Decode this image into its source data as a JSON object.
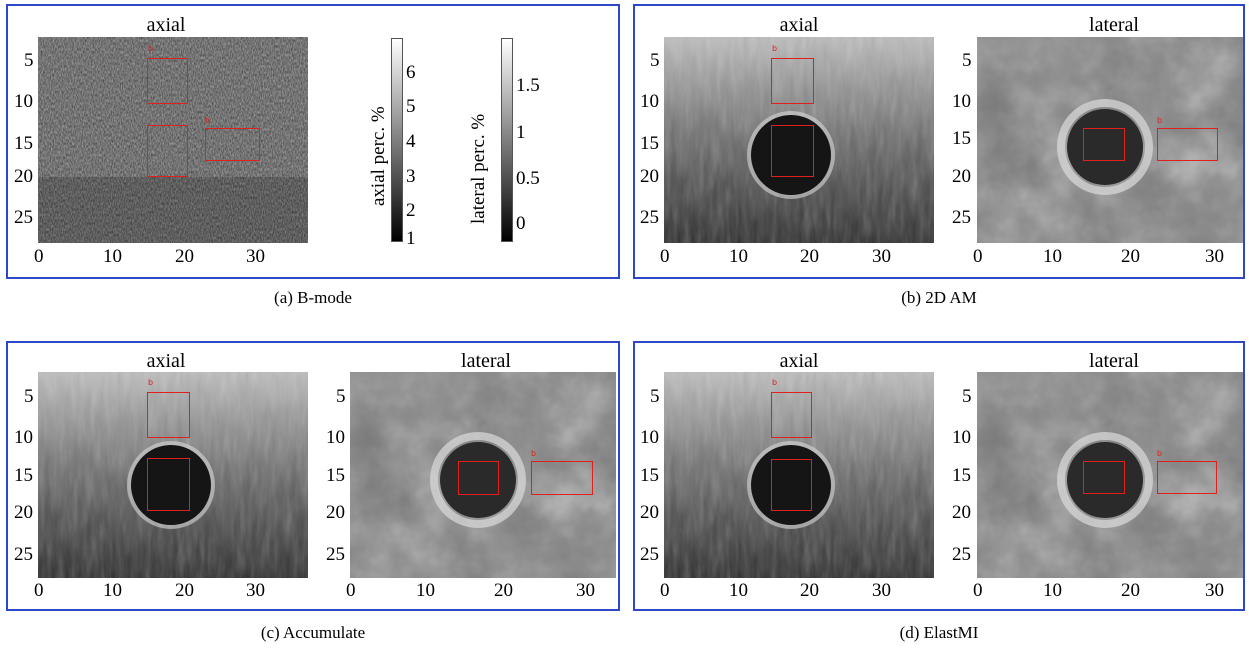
{
  "panels": {
    "a": {
      "caption": "(a) B-mode",
      "axial_title": "axial",
      "yticks": [
        "5",
        "10",
        "15",
        "20",
        "25"
      ],
      "xticks": [
        "0",
        "10",
        "20",
        "30"
      ],
      "roi_labels": [
        "b",
        "b"
      ],
      "colorbar_axial": {
        "label": "axial perc. %",
        "ticks": [
          "6",
          "5",
          "4",
          "3",
          "2",
          "1"
        ]
      },
      "colorbar_lateral": {
        "label": "lateral perc. %",
        "ticks": [
          "1.5",
          "1",
          "0.5",
          "0"
        ]
      }
    },
    "b": {
      "caption": "(b) 2D AM",
      "axial_title": "axial",
      "lateral_title": "lateral",
      "yticks": [
        "5",
        "10",
        "15",
        "20",
        "25"
      ],
      "xticks": [
        "0",
        "10",
        "20",
        "30"
      ],
      "roi_label": "b"
    },
    "c": {
      "caption": "(c) Accumulate",
      "axial_title": "axial",
      "lateral_title": "lateral",
      "yticks": [
        "5",
        "10",
        "15",
        "20",
        "25"
      ],
      "xticks": [
        "0",
        "10",
        "20",
        "30"
      ],
      "roi_label": "b"
    },
    "d": {
      "caption": "(d) ElastMI",
      "axial_title": "axial",
      "lateral_title": "lateral",
      "yticks": [
        "5",
        "10",
        "15",
        "20",
        "25"
      ],
      "xticks": [
        "0",
        "10",
        "20",
        "30"
      ],
      "roi_label": "b"
    }
  },
  "colors": {
    "frame": "#2c48c8",
    "roi": "#e0201c"
  }
}
